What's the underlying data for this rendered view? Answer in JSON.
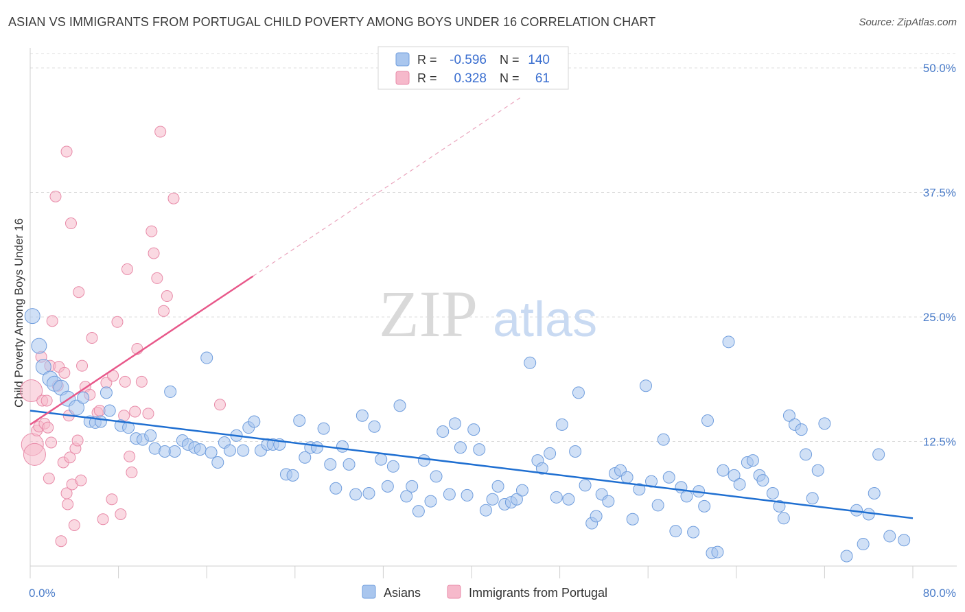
{
  "title": "ASIAN VS IMMIGRANTS FROM PORTUGAL CHILD POVERTY AMONG BOYS UNDER 16 CORRELATION CHART",
  "source": "Source: ZipAtlas.com",
  "watermark": {
    "zip": "ZIP",
    "atlas": "atlas"
  },
  "colors": {
    "asian_fill": "#a9c6ee",
    "asian_stroke": "#6f9ddd",
    "asian_line": "#1f6fd1",
    "portugal_fill": "#f6b9cb",
    "portugal_stroke": "#e88aa8",
    "portugal_line": "#e8588a",
    "grid": "#dcdcdc",
    "tick_text": "#4a7cc9"
  },
  "legend": {
    "r_label": "R =",
    "n_label": "N =",
    "asian": {
      "r": "-0.596",
      "n": "140"
    },
    "portugal": {
      "r": "0.328",
      "n": "61"
    }
  },
  "chart_data": {
    "type": "scatter",
    "title": "ASIAN VS IMMIGRANTS FROM PORTUGAL CHILD POVERTY AMONG BOYS UNDER 16 CORRELATION CHART",
    "xlabel": "",
    "ylabel": "Child Poverty Among Boys Under 16",
    "xlim": [
      0,
      80
    ],
    "ylim": [
      0,
      52
    ],
    "x_tick_labels": [
      "0.0%",
      "80.0%"
    ],
    "y_ticks": [
      12.5,
      25.0,
      37.5,
      50.0
    ],
    "y_tick_labels": [
      "12.5%",
      "25.0%",
      "37.5%",
      "50.0%"
    ],
    "grid": true,
    "legend_placement": "top-center",
    "series": [
      {
        "name": "Asians",
        "trend": {
          "x0": 0,
          "y0": 15.6,
          "x1": 80,
          "y1": 4.8
        },
        "points": [
          [
            0.2,
            25.1
          ],
          [
            0.8,
            22.1
          ],
          [
            1.2,
            20.0
          ],
          [
            1.8,
            18.8
          ],
          [
            2.2,
            18.3
          ],
          [
            2.8,
            17.9
          ],
          [
            3.4,
            16.8
          ],
          [
            4.2,
            15.9
          ],
          [
            4.8,
            16.9
          ],
          [
            5.4,
            14.5
          ],
          [
            5.9,
            14.4
          ],
          [
            6.4,
            14.5
          ],
          [
            6.9,
            17.4
          ],
          [
            7.2,
            15.6
          ],
          [
            8.2,
            14.1
          ],
          [
            8.9,
            13.9
          ],
          [
            9.6,
            12.8
          ],
          [
            10.2,
            12.7
          ],
          [
            10.9,
            13.1
          ],
          [
            11.3,
            11.8
          ],
          [
            12.2,
            11.5
          ],
          [
            12.7,
            17.5
          ],
          [
            13.1,
            11.5
          ],
          [
            13.8,
            12.6
          ],
          [
            14.3,
            12.2
          ],
          [
            14.9,
            11.9
          ],
          [
            15.4,
            11.7
          ],
          [
            16.0,
            20.9
          ],
          [
            16.4,
            11.4
          ],
          [
            17.0,
            10.4
          ],
          [
            17.6,
            12.4
          ],
          [
            18.1,
            11.6
          ],
          [
            18.7,
            13.1
          ],
          [
            19.3,
            11.6
          ],
          [
            19.8,
            13.9
          ],
          [
            20.3,
            14.5
          ],
          [
            20.9,
            11.6
          ],
          [
            21.5,
            12.2
          ],
          [
            22.0,
            12.2
          ],
          [
            22.6,
            12.2
          ],
          [
            23.2,
            9.2
          ],
          [
            23.8,
            9.1
          ],
          [
            24.4,
            14.6
          ],
          [
            24.9,
            10.9
          ],
          [
            25.4,
            11.9
          ],
          [
            26.0,
            11.9
          ],
          [
            26.6,
            13.8
          ],
          [
            27.2,
            10.2
          ],
          [
            27.7,
            7.8
          ],
          [
            28.3,
            12.0
          ],
          [
            28.9,
            10.2
          ],
          [
            29.5,
            7.2
          ],
          [
            30.1,
            15.1
          ],
          [
            30.7,
            7.3
          ],
          [
            31.2,
            14.0
          ],
          [
            31.8,
            10.7
          ],
          [
            32.4,
            8.0
          ],
          [
            32.9,
            10.0
          ],
          [
            33.5,
            16.1
          ],
          [
            34.1,
            7.0
          ],
          [
            34.6,
            8.0
          ],
          [
            35.2,
            5.5
          ],
          [
            35.7,
            10.6
          ],
          [
            36.3,
            6.5
          ],
          [
            36.8,
            9.0
          ],
          [
            37.4,
            13.5
          ],
          [
            38.0,
            7.2
          ],
          [
            38.5,
            14.3
          ],
          [
            39.0,
            11.9
          ],
          [
            39.6,
            7.1
          ],
          [
            40.2,
            13.7
          ],
          [
            40.7,
            11.7
          ],
          [
            41.3,
            5.6
          ],
          [
            41.9,
            6.7
          ],
          [
            42.4,
            8.0
          ],
          [
            43.0,
            6.2
          ],
          [
            43.6,
            6.4
          ],
          [
            44.1,
            6.7
          ],
          [
            44.6,
            7.6
          ],
          [
            45.3,
            20.4
          ],
          [
            46.0,
            10.6
          ],
          [
            46.4,
            9.8
          ],
          [
            47.1,
            11.3
          ],
          [
            47.7,
            6.9
          ],
          [
            48.2,
            14.2
          ],
          [
            48.8,
            6.7
          ],
          [
            49.4,
            11.5
          ],
          [
            49.7,
            17.4
          ],
          [
            50.3,
            8.1
          ],
          [
            50.9,
            4.3
          ],
          [
            51.3,
            5.0
          ],
          [
            51.8,
            7.2
          ],
          [
            52.4,
            6.5
          ],
          [
            53.0,
            9.3
          ],
          [
            53.5,
            9.6
          ],
          [
            54.1,
            8.9
          ],
          [
            54.6,
            4.7
          ],
          [
            55.2,
            7.7
          ],
          [
            55.8,
            18.1
          ],
          [
            56.3,
            8.5
          ],
          [
            56.9,
            6.1
          ],
          [
            57.4,
            12.7
          ],
          [
            57.9,
            8.9
          ],
          [
            58.5,
            3.5
          ],
          [
            59.0,
            7.9
          ],
          [
            59.5,
            7.0
          ],
          [
            60.1,
            3.4
          ],
          [
            60.6,
            7.5
          ],
          [
            61.1,
            6.0
          ],
          [
            61.4,
            14.6
          ],
          [
            61.8,
            1.3
          ],
          [
            62.3,
            1.4
          ],
          [
            62.8,
            9.6
          ],
          [
            63.3,
            22.5
          ],
          [
            63.8,
            9.1
          ],
          [
            64.3,
            8.2
          ],
          [
            65.0,
            10.4
          ],
          [
            65.5,
            10.6
          ],
          [
            66.1,
            9.1
          ],
          [
            66.4,
            8.6
          ],
          [
            67.3,
            7.3
          ],
          [
            67.9,
            6.0
          ],
          [
            68.3,
            4.8
          ],
          [
            68.8,
            15.1
          ],
          [
            69.3,
            14.2
          ],
          [
            69.9,
            13.7
          ],
          [
            70.3,
            11.2
          ],
          [
            70.9,
            6.8
          ],
          [
            71.4,
            9.6
          ],
          [
            72.0,
            14.3
          ],
          [
            74.9,
            5.6
          ],
          [
            75.5,
            2.2
          ],
          [
            76.0,
            5.2
          ],
          [
            76.5,
            7.3
          ],
          [
            76.9,
            11.2
          ],
          [
            74.0,
            1.0
          ],
          [
            77.9,
            3.0
          ],
          [
            79.2,
            2.6
          ]
        ]
      },
      {
        "name": "Immigrants from Portugal",
        "trend_solid": {
          "x0": 0,
          "y0": 14.2,
          "x1": 20.2,
          "y1": 29.1
        },
        "trend_dashed": {
          "x0": 20.2,
          "y0": 29.1,
          "x1": 44.4,
          "y1": 47.0
        },
        "points": [
          [
            0.1,
            17.6
          ],
          [
            0.2,
            12.2
          ],
          [
            0.4,
            11.2
          ],
          [
            0.6,
            13.6
          ],
          [
            0.8,
            14.0
          ],
          [
            1.0,
            21.0
          ],
          [
            1.1,
            16.6
          ],
          [
            1.3,
            14.3
          ],
          [
            1.5,
            16.6
          ],
          [
            1.6,
            13.9
          ],
          [
            1.7,
            8.8
          ],
          [
            1.8,
            20.1
          ],
          [
            1.9,
            12.4
          ],
          [
            2.0,
            24.6
          ],
          [
            2.3,
            37.1
          ],
          [
            2.5,
            18.1
          ],
          [
            2.6,
            20.0
          ],
          [
            2.8,
            2.5
          ],
          [
            3.0,
            10.4
          ],
          [
            3.1,
            19.4
          ],
          [
            3.3,
            7.3
          ],
          [
            3.3,
            41.6
          ],
          [
            3.4,
            6.2
          ],
          [
            3.5,
            15.1
          ],
          [
            3.6,
            10.9
          ],
          [
            3.7,
            34.4
          ],
          [
            3.8,
            8.2
          ],
          [
            4.0,
            4.1
          ],
          [
            4.1,
            11.8
          ],
          [
            4.3,
            12.6
          ],
          [
            4.4,
            27.5
          ],
          [
            4.6,
            8.6
          ],
          [
            4.7,
            20.1
          ],
          [
            5.0,
            18.0
          ],
          [
            5.6,
            22.9
          ],
          [
            6.1,
            15.4
          ],
          [
            6.3,
            15.6
          ],
          [
            6.6,
            4.7
          ],
          [
            6.9,
            18.4
          ],
          [
            7.4,
            6.7
          ],
          [
            7.5,
            19.1
          ],
          [
            7.9,
            24.5
          ],
          [
            8.2,
            5.2
          ],
          [
            8.6,
            18.5
          ],
          [
            8.8,
            29.8
          ],
          [
            9.0,
            11.0
          ],
          [
            9.2,
            9.4
          ],
          [
            9.5,
            15.5
          ],
          [
            9.7,
            21.8
          ],
          [
            10.1,
            18.5
          ],
          [
            10.7,
            15.3
          ],
          [
            11.0,
            33.6
          ],
          [
            11.2,
            31.4
          ],
          [
            11.5,
            28.9
          ],
          [
            11.8,
            43.6
          ],
          [
            12.1,
            25.6
          ],
          [
            12.4,
            27.1
          ],
          [
            13.0,
            36.9
          ],
          [
            17.2,
            16.2
          ],
          [
            8.5,
            15.1
          ],
          [
            5.4,
            17.2
          ]
        ]
      }
    ]
  }
}
